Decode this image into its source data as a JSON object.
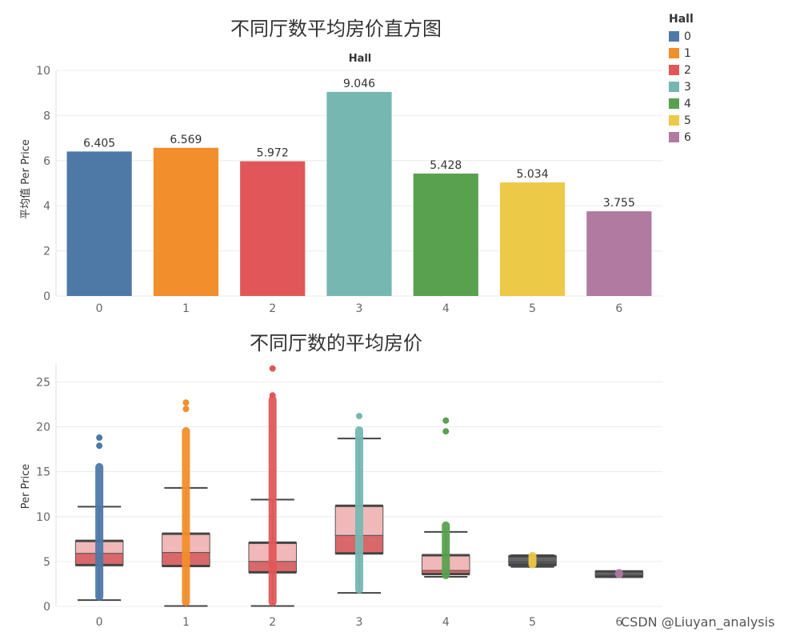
{
  "watermark": "CSDN @Liuyan_analysis",
  "legend": {
    "title": "Hall",
    "items": [
      {
        "label": "0",
        "color": "#4e79a7"
      },
      {
        "label": "1",
        "color": "#f28e2b"
      },
      {
        "label": "2",
        "color": "#e15759"
      },
      {
        "label": "3",
        "color": "#76b7b2"
      },
      {
        "label": "4",
        "color": "#59a14f"
      },
      {
        "label": "5",
        "color": "#edc948"
      },
      {
        "label": "6",
        "color": "#b07aa1"
      }
    ]
  },
  "chart_data": [
    {
      "type": "bar",
      "title": "不同厅数平均房价直方图",
      "header": "Hall",
      "ylabel": "平均值 Per Price",
      "xlabel": "",
      "categories": [
        "0",
        "1",
        "2",
        "3",
        "4",
        "5",
        "6"
      ],
      "values": [
        6.405,
        6.569,
        5.972,
        9.046,
        5.428,
        5.034,
        3.755
      ],
      "value_labels": [
        "6.405",
        "6.569",
        "5.972",
        "9.046",
        "5.428",
        "5.034",
        "3.755"
      ],
      "ylim": [
        0,
        10
      ],
      "yticks": [
        0,
        2,
        4,
        6,
        8,
        10
      ],
      "grid": true
    },
    {
      "type": "box",
      "title": "不同厅数的平均房价",
      "ylabel": "Per Price",
      "xlabel": "",
      "categories": [
        "0",
        "1",
        "2",
        "3",
        "4",
        "5",
        "6"
      ],
      "ylim": [
        0,
        27
      ],
      "yticks": [
        0,
        5,
        10,
        15,
        20,
        25
      ],
      "grid": true,
      "boxes": [
        {
          "whisker_low": 0.7,
          "q1": 4.6,
          "median": 5.9,
          "q3": 7.3,
          "whisker_high": 11.1,
          "points_range": [
            0.9,
            15.7
          ],
          "outliers": [
            17.9,
            18.8
          ]
        },
        {
          "whisker_low": 0.05,
          "q1": 4.5,
          "median": 6.0,
          "q3": 8.1,
          "whisker_high": 13.2,
          "points_range": [
            0.3,
            19.7
          ],
          "outliers": [
            22.0,
            22.7
          ]
        },
        {
          "whisker_low": 0.05,
          "q1": 3.8,
          "median": 5.0,
          "q3": 7.1,
          "whisker_high": 11.9,
          "points_range": [
            0.3,
            23.2
          ],
          "outliers": [
            23.5,
            26.5
          ]
        },
        {
          "whisker_low": 1.5,
          "q1": 5.9,
          "median": 7.9,
          "q3": 11.2,
          "whisker_high": 18.7,
          "points_range": [
            1.7,
            19.8
          ],
          "outliers": [
            21.2
          ]
        },
        {
          "whisker_low": 3.3,
          "q1": 3.6,
          "median": 4.0,
          "q3": 5.7,
          "whisker_high": 8.3,
          "points_range": [
            3.3,
            9.2
          ],
          "outliers": [
            19.5,
            20.7
          ]
        },
        {
          "whisker_low": 4.4,
          "q1": 4.6,
          "median": 5.0,
          "q3": 5.6,
          "whisker_high": 5.7,
          "points_range": [
            4.5,
            5.8
          ],
          "outliers": []
        },
        {
          "whisker_low": 3.3,
          "q1": 3.3,
          "median": 3.5,
          "q3": 3.9,
          "whisker_high": 3.9,
          "points_range": [
            3.4,
            3.9
          ],
          "outliers": []
        }
      ]
    }
  ]
}
